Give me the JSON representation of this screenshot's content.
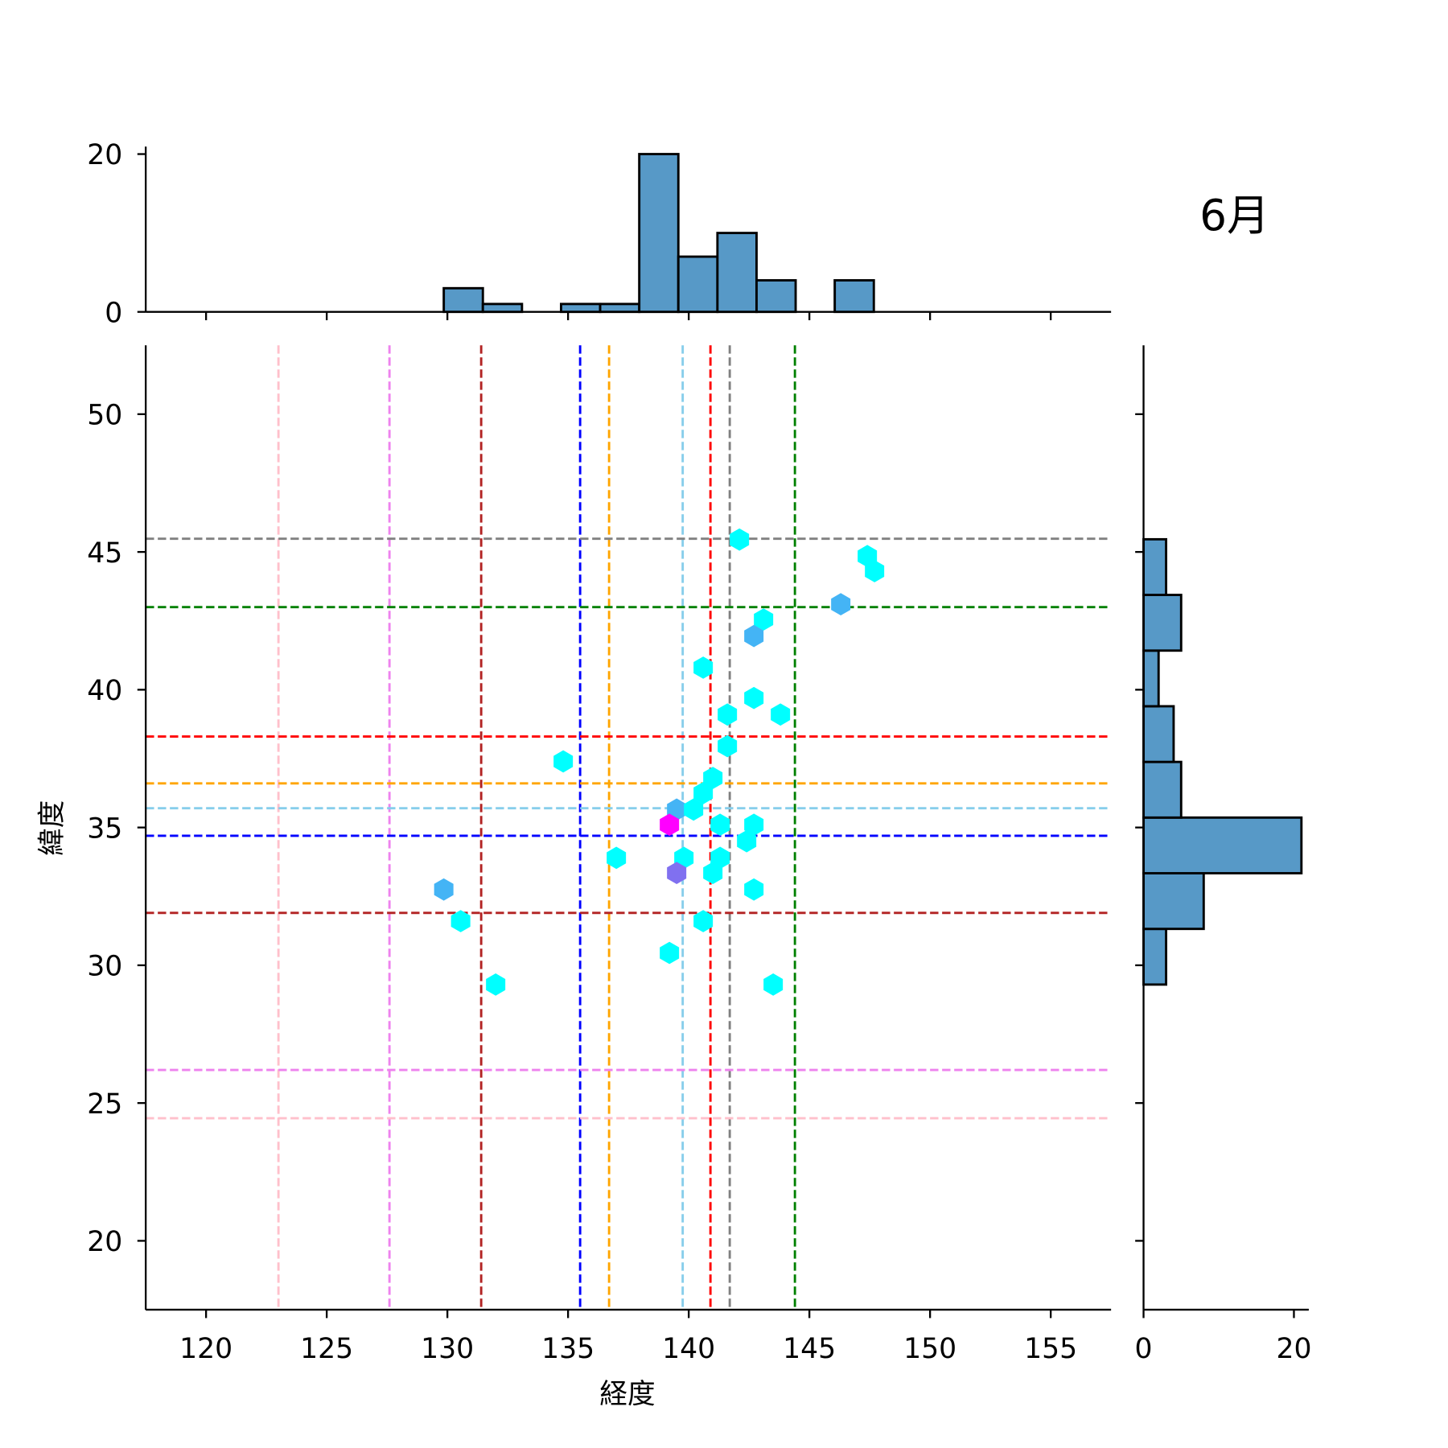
{
  "chart_data": {
    "type": "scatter",
    "title": "6月",
    "xlabel": "経度",
    "ylabel": "緯度",
    "xlim": [
      117.5,
      157.5
    ],
    "ylim": [
      17.5,
      52.5
    ],
    "xticks": [
      120,
      125,
      130,
      135,
      140,
      145,
      150,
      155
    ],
    "yticks": [
      20,
      25,
      30,
      35,
      40,
      45,
      50
    ],
    "marg_top": {
      "ylim": [
        0,
        21
      ],
      "yticks": [
        0,
        20
      ],
      "bin_start": 129.85,
      "bin_width": 1.62,
      "counts": [
        3,
        1,
        0,
        1,
        1,
        20,
        7,
        10,
        4,
        0,
        4
      ]
    },
    "marg_right": {
      "xlim": [
        0,
        22
      ],
      "xticks": [
        0,
        20
      ],
      "bin_start": 29.3,
      "bin_width": 2.02,
      "counts": [
        3,
        8,
        21,
        5,
        4,
        2,
        5,
        3
      ]
    },
    "vlines": [
      {
        "x": 123.0,
        "color": "#ffc0cb"
      },
      {
        "x": 127.6,
        "color": "#ee82ee"
      },
      {
        "x": 131.4,
        "color": "#b22222"
      },
      {
        "x": 135.5,
        "color": "#0000ff"
      },
      {
        "x": 136.7,
        "color": "#ffa500"
      },
      {
        "x": 139.75,
        "color": "#87ceeb"
      },
      {
        "x": 140.9,
        "color": "#ff0000"
      },
      {
        "x": 141.7,
        "color": "#808080"
      },
      {
        "x": 144.4,
        "color": "#008000"
      }
    ],
    "hlines": [
      {
        "y": 45.48,
        "color": "#808080"
      },
      {
        "y": 43.0,
        "color": "#008000"
      },
      {
        "y": 38.3,
        "color": "#ff0000"
      },
      {
        "y": 36.6,
        "color": "#ffa500"
      },
      {
        "y": 35.7,
        "color": "#87ceeb"
      },
      {
        "y": 34.7,
        "color": "#0000ff"
      },
      {
        "y": 31.9,
        "color": "#b22222"
      },
      {
        "y": 26.2,
        "color": "#ee82ee"
      },
      {
        "y": 24.45,
        "color": "#ffc0cb"
      }
    ],
    "points": [
      {
        "x": 142.1,
        "y": 45.45,
        "color": "#00ffff"
      },
      {
        "x": 147.4,
        "y": 44.85,
        "color": "#00ffff"
      },
      {
        "x": 147.7,
        "y": 44.3,
        "color": "#00ffff"
      },
      {
        "x": 146.3,
        "y": 43.1,
        "color": "#44b4f5"
      },
      {
        "x": 143.1,
        "y": 42.55,
        "color": "#00ffff"
      },
      {
        "x": 142.7,
        "y": 41.95,
        "color": "#44b4f5"
      },
      {
        "x": 140.6,
        "y": 40.8,
        "color": "#00ffff"
      },
      {
        "x": 142.7,
        "y": 39.7,
        "color": "#00ffff"
      },
      {
        "x": 141.6,
        "y": 39.1,
        "color": "#00ffff"
      },
      {
        "x": 143.8,
        "y": 39.1,
        "color": "#00ffff"
      },
      {
        "x": 141.6,
        "y": 37.95,
        "color": "#00ffff"
      },
      {
        "x": 134.8,
        "y": 37.4,
        "color": "#00ffff"
      },
      {
        "x": 141.0,
        "y": 36.8,
        "color": "#00ffff"
      },
      {
        "x": 140.6,
        "y": 36.25,
        "color": "#00ffff"
      },
      {
        "x": 139.5,
        "y": 35.65,
        "color": "#44b4f5"
      },
      {
        "x": 140.2,
        "y": 35.65,
        "color": "#00ffff"
      },
      {
        "x": 139.2,
        "y": 35.1,
        "color": "#ff00ff"
      },
      {
        "x": 141.3,
        "y": 35.1,
        "color": "#00ffff"
      },
      {
        "x": 142.7,
        "y": 35.1,
        "color": "#00ffff"
      },
      {
        "x": 142.4,
        "y": 34.5,
        "color": "#00ffff"
      },
      {
        "x": 137.0,
        "y": 33.9,
        "color": "#00ffff"
      },
      {
        "x": 139.8,
        "y": 33.9,
        "color": "#00ffff"
      },
      {
        "x": 141.3,
        "y": 33.9,
        "color": "#00ffff"
      },
      {
        "x": 139.5,
        "y": 33.35,
        "color": "#8070f0"
      },
      {
        "x": 141.0,
        "y": 33.35,
        "color": "#00ffff"
      },
      {
        "x": 129.85,
        "y": 32.75,
        "color": "#44b4f5"
      },
      {
        "x": 142.7,
        "y": 32.75,
        "color": "#00ffff"
      },
      {
        "x": 130.55,
        "y": 31.6,
        "color": "#00ffff"
      },
      {
        "x": 140.6,
        "y": 31.6,
        "color": "#00ffff"
      },
      {
        "x": 139.2,
        "y": 30.45,
        "color": "#00ffff"
      },
      {
        "x": 132.0,
        "y": 29.3,
        "color": "#00ffff"
      },
      {
        "x": 143.5,
        "y": 29.3,
        "color": "#00ffff"
      }
    ],
    "bar_color": "#5799c7"
  }
}
